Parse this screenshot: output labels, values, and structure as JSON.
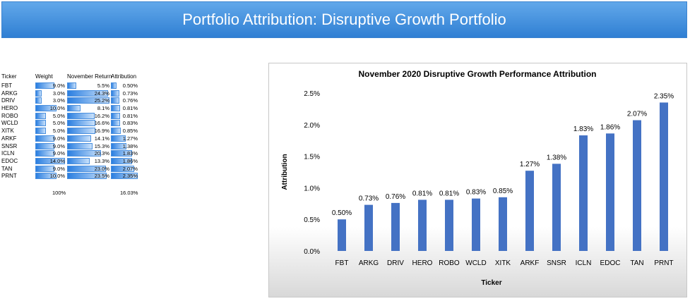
{
  "banner": {
    "title": "Portfolio Attribution: Disruptive Growth Portfolio"
  },
  "table": {
    "headers": {
      "ticker": "Ticker",
      "weight": "Weight",
      "return": "November Return",
      "attribution": "Attribution"
    },
    "rows": [
      {
        "ticker": "FBT",
        "weight": "9.0%",
        "weight_value": 9.0,
        "return": "5.5%",
        "return_value": 5.5,
        "attribution": "0.50%",
        "attribution_value": 0.5
      },
      {
        "ticker": "ARKG",
        "weight": "3.0%",
        "weight_value": 3.0,
        "return": "24.3%",
        "return_value": 24.3,
        "attribution": "0.73%",
        "attribution_value": 0.73
      },
      {
        "ticker": "DRIV",
        "weight": "3.0%",
        "weight_value": 3.0,
        "return": "25.2%",
        "return_value": 25.2,
        "attribution": "0.76%",
        "attribution_value": 0.76
      },
      {
        "ticker": "HERO",
        "weight": "10.0%",
        "weight_value": 10.0,
        "return": "8.1%",
        "return_value": 8.1,
        "attribution": "0.81%",
        "attribution_value": 0.81
      },
      {
        "ticker": "ROBO",
        "weight": "5.0%",
        "weight_value": 5.0,
        "return": "16.2%",
        "return_value": 16.2,
        "attribution": "0.81%",
        "attribution_value": 0.81
      },
      {
        "ticker": "WCLD",
        "weight": "5.0%",
        "weight_value": 5.0,
        "return": "16.6%",
        "return_value": 16.6,
        "attribution": "0.83%",
        "attribution_value": 0.83
      },
      {
        "ticker": "XITK",
        "weight": "5.0%",
        "weight_value": 5.0,
        "return": "16.9%",
        "return_value": 16.9,
        "attribution": "0.85%",
        "attribution_value": 0.85
      },
      {
        "ticker": "ARKF",
        "weight": "9.0%",
        "weight_value": 9.0,
        "return": "14.1%",
        "return_value": 14.1,
        "attribution": "1.27%",
        "attribution_value": 1.27
      },
      {
        "ticker": "SNSR",
        "weight": "9.0%",
        "weight_value": 9.0,
        "return": "15.3%",
        "return_value": 15.3,
        "attribution": "1.38%",
        "attribution_value": 1.38
      },
      {
        "ticker": "ICLN",
        "weight": "9.0%",
        "weight_value": 9.0,
        "return": "20.3%",
        "return_value": 20.3,
        "attribution": "1.83%",
        "attribution_value": 1.83
      },
      {
        "ticker": "EDOC",
        "weight": "14.0%",
        "weight_value": 14.0,
        "return": "13.3%",
        "return_value": 13.3,
        "attribution": "1.86%",
        "attribution_value": 1.86
      },
      {
        "ticker": "TAN",
        "weight": "9.0%",
        "weight_value": 9.0,
        "return": "23.0%",
        "return_value": 23.0,
        "attribution": "2.07%",
        "attribution_value": 2.07
      },
      {
        "ticker": "PRNT",
        "weight": "10.0%",
        "weight_value": 10.0,
        "return": "23.5%",
        "return_value": 23.5,
        "attribution": "2.35%",
        "attribution_value": 2.35
      }
    ],
    "totals": {
      "weight": "100%",
      "attribution": "16.03%"
    }
  },
  "chart_data": {
    "type": "bar",
    "title": "November 2020 Disruptive Growth Performance Attribution",
    "xlabel": "Ticker",
    "ylabel": "Attribution",
    "categories": [
      "FBT",
      "ARKG",
      "DRIV",
      "HERO",
      "ROBO",
      "WCLD",
      "XITK",
      "ARKF",
      "SNSR",
      "ICLN",
      "EDOC",
      "TAN",
      "PRNT"
    ],
    "values": [
      0.5,
      0.73,
      0.76,
      0.81,
      0.81,
      0.83,
      0.85,
      1.27,
      1.38,
      1.83,
      1.86,
      2.07,
      2.35
    ],
    "data_labels": [
      "0.50%",
      "0.73%",
      "0.76%",
      "0.81%",
      "0.81%",
      "0.83%",
      "0.85%",
      "1.27%",
      "1.38%",
      "1.83%",
      "1.86%",
      "2.07%",
      "2.35%"
    ],
    "yticks": [
      0.0,
      0.5,
      1.0,
      1.5,
      2.0,
      2.5
    ],
    "ytick_labels": [
      "0.0%",
      "0.5%",
      "1.0%",
      "1.5%",
      "2.0%",
      "2.5%"
    ],
    "ylim": [
      0,
      2.5
    ],
    "grid": false,
    "legend": "none",
    "bar_color": "#4472c4"
  }
}
